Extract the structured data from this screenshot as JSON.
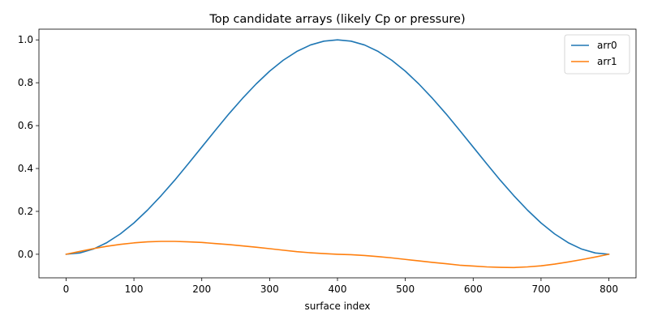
{
  "chart_data": {
    "type": "line",
    "title": "Top candidate arrays (likely Cp or pressure)",
    "xlabel": "surface index",
    "ylabel": "",
    "xlim": [
      -40,
      840
    ],
    "ylim": [
      -0.11,
      1.05
    ],
    "xticks": [
      0,
      100,
      200,
      300,
      400,
      500,
      600,
      700,
      800
    ],
    "yticks": [
      0.0,
      0.2,
      0.4,
      0.6,
      0.8,
      1.0
    ],
    "xtick_labels": [
      "0",
      "100",
      "200",
      "300",
      "400",
      "500",
      "600",
      "700",
      "800"
    ],
    "ytick_labels": [
      "0.0",
      "0.2",
      "0.4",
      "0.6",
      "0.8",
      "1.0"
    ],
    "grid": false,
    "legend_position": "top-right",
    "series": [
      {
        "name": "arr0",
        "color": "#1f77b4",
        "x": [
          0,
          20,
          40,
          60,
          80,
          100,
          120,
          140,
          160,
          180,
          200,
          220,
          240,
          260,
          280,
          300,
          320,
          340,
          360,
          380,
          400,
          420,
          440,
          460,
          480,
          500,
          520,
          540,
          560,
          580,
          600,
          620,
          640,
          660,
          680,
          700,
          720,
          740,
          760,
          780,
          800
        ],
        "y": [
          0.0,
          0.006,
          0.024,
          0.054,
          0.095,
          0.146,
          0.206,
          0.273,
          0.345,
          0.422,
          0.5,
          0.578,
          0.655,
          0.727,
          0.794,
          0.854,
          0.905,
          0.946,
          0.976,
          0.994,
          1.0,
          0.994,
          0.976,
          0.946,
          0.905,
          0.854,
          0.794,
          0.727,
          0.655,
          0.578,
          0.5,
          0.422,
          0.345,
          0.273,
          0.206,
          0.146,
          0.095,
          0.054,
          0.024,
          0.006,
          0.0
        ]
      },
      {
        "name": "arr1",
        "color": "#ff7f0e",
        "x": [
          0,
          20,
          40,
          60,
          80,
          100,
          120,
          140,
          160,
          180,
          200,
          220,
          240,
          260,
          280,
          300,
          320,
          340,
          360,
          380,
          400,
          420,
          440,
          460,
          480,
          500,
          520,
          540,
          560,
          580,
          600,
          620,
          640,
          660,
          680,
          700,
          720,
          740,
          760,
          780,
          800
        ],
        "y": [
          0.0,
          0.013,
          0.026,
          0.037,
          0.046,
          0.053,
          0.058,
          0.06,
          0.06,
          0.058,
          0.055,
          0.05,
          0.045,
          0.039,
          0.033,
          0.026,
          0.019,
          0.012,
          0.007,
          0.003,
          0.0,
          -0.002,
          -0.006,
          -0.011,
          -0.017,
          -0.024,
          -0.031,
          -0.038,
          -0.044,
          -0.051,
          -0.055,
          -0.059,
          -0.061,
          -0.062,
          -0.059,
          -0.054,
          -0.046,
          -0.036,
          -0.025,
          -0.013,
          0.0
        ]
      }
    ]
  }
}
